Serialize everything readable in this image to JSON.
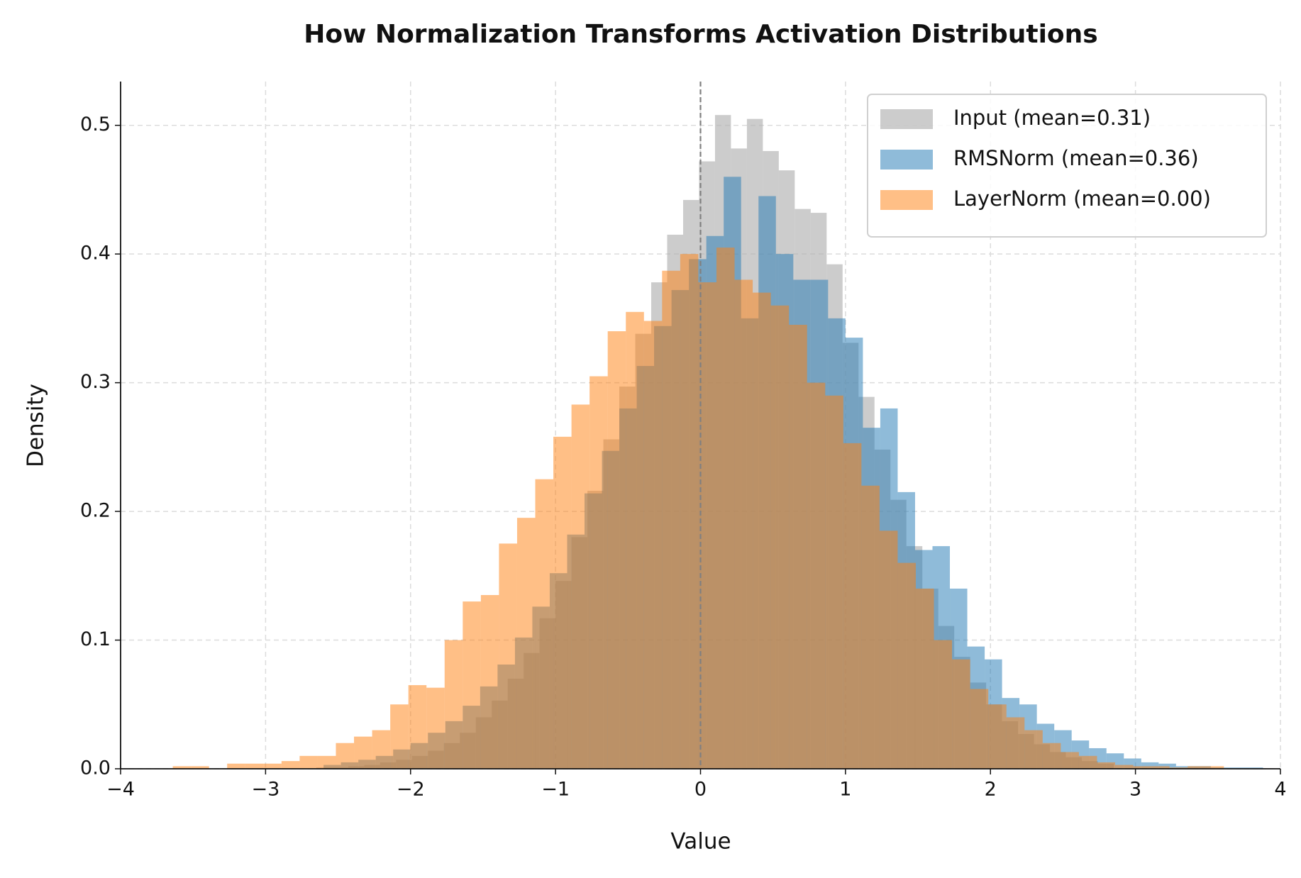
{
  "chart_data": {
    "type": "histogram",
    "title": "How Normalization Transforms Activation Distributions",
    "x_label": "Value",
    "y_label": "Density",
    "xlim": [
      -4,
      4
    ],
    "ylim": [
      0,
      0.534
    ],
    "xticks": [
      {
        "value": -4,
        "label": "−4"
      },
      {
        "value": -3,
        "label": "−3"
      },
      {
        "value": -2,
        "label": "−2"
      },
      {
        "value": -1,
        "label": "−1"
      },
      0,
      1,
      2,
      3,
      4
    ],
    "yticks": [
      {
        "value": 0,
        "label": "0.0"
      },
      0.1,
      0.2,
      0.3,
      0.4,
      0.5
    ],
    "grid": true,
    "legend_location": "upper-right",
    "reference_line_x": 0,
    "series": [
      {
        "name": "Input (mean=0.31)",
        "color": "#b0b0b0",
        "opacity": 0.65,
        "bins": [
          -2.65,
          -2.54,
          -2.43,
          -2.32,
          -2.21,
          -2.1,
          -1.99,
          -1.88,
          -1.77,
          -1.66,
          -1.55,
          -1.44,
          -1.33,
          -1.22,
          -1.11,
          -1.0,
          -0.89,
          -0.78,
          -0.67,
          -0.56,
          -0.45,
          -0.34,
          -0.23,
          -0.12,
          -0.01,
          0.1,
          0.21,
          0.32,
          0.43,
          0.54,
          0.65,
          0.76,
          0.87,
          0.98,
          1.09,
          1.2,
          1.31,
          1.42,
          1.53,
          1.64,
          1.75,
          1.86,
          1.97,
          2.08,
          2.19,
          2.3,
          2.41,
          2.52,
          2.63,
          2.74,
          2.85
        ],
        "values": [
          0.001,
          0.001,
          0.002,
          0.003,
          0.005,
          0.007,
          0.01,
          0.014,
          0.02,
          0.028,
          0.04,
          0.053,
          0.07,
          0.09,
          0.117,
          0.146,
          0.18,
          0.216,
          0.256,
          0.297,
          0.338,
          0.378,
          0.415,
          0.442,
          0.472,
          0.508,
          0.482,
          0.505,
          0.48,
          0.465,
          0.435,
          0.432,
          0.392,
          0.331,
          0.289,
          0.248,
          0.209,
          0.173,
          0.14,
          0.111,
          0.087,
          0.067,
          0.05,
          0.037,
          0.027,
          0.019,
          0.013,
          0.009,
          0.006,
          0.004
        ]
      },
      {
        "name": "RMSNorm (mean=0.36)",
        "color": "#1f77b4",
        "opacity": 0.5,
        "bins": [
          -2.6,
          -2.48,
          -2.36,
          -2.24,
          -2.12,
          -2.0,
          -1.88,
          -1.76,
          -1.64,
          -1.52,
          -1.4,
          -1.28,
          -1.16,
          -1.04,
          -0.92,
          -0.8,
          -0.68,
          -0.56,
          -0.44,
          -0.32,
          -0.2,
          -0.08,
          0.04,
          0.16,
          0.28,
          0.4,
          0.52,
          0.64,
          0.76,
          0.88,
          1.0,
          1.12,
          1.24,
          1.36,
          1.48,
          1.6,
          1.72,
          1.84,
          1.96,
          2.08,
          2.2,
          2.32,
          2.44,
          2.56,
          2.68,
          2.8,
          2.92,
          3.04,
          3.16,
          3.28,
          3.4,
          3.52,
          3.64,
          3.76,
          3.88
        ],
        "values": [
          0.003,
          0.005,
          0.007,
          0.01,
          0.015,
          0.02,
          0.028,
          0.037,
          0.049,
          0.064,
          0.081,
          0.102,
          0.126,
          0.152,
          0.182,
          0.214,
          0.247,
          0.28,
          0.313,
          0.344,
          0.372,
          0.396,
          0.414,
          0.46,
          0.35,
          0.445,
          0.4,
          0.38,
          0.38,
          0.35,
          0.335,
          0.265,
          0.28,
          0.215,
          0.17,
          0.173,
          0.14,
          0.095,
          0.085,
          0.055,
          0.05,
          0.035,
          0.03,
          0.022,
          0.016,
          0.012,
          0.008,
          0.005,
          0.004,
          0.002,
          0.002,
          0.001,
          0.001,
          0.001
        ]
      },
      {
        "name": "LayerNorm (mean=0.00)",
        "color": "#ff7f0e",
        "opacity": 0.5,
        "bins": [
          -3.64,
          -3.515,
          -3.39,
          -3.265,
          -3.14,
          -3.015,
          -2.89,
          -2.765,
          -2.64,
          -2.515,
          -2.39,
          -2.265,
          -2.14,
          -2.015,
          -1.89,
          -1.765,
          -1.64,
          -1.515,
          -1.39,
          -1.265,
          -1.14,
          -1.015,
          -0.89,
          -0.765,
          -0.64,
          -0.515,
          -0.39,
          -0.265,
          -0.14,
          -0.015,
          0.11,
          0.235,
          0.36,
          0.485,
          0.61,
          0.735,
          0.86,
          0.985,
          1.11,
          1.235,
          1.36,
          1.485,
          1.61,
          1.735,
          1.86,
          1.985,
          2.11,
          2.235,
          2.36,
          2.485,
          2.61,
          2.735,
          2.86,
          2.985,
          3.11,
          3.235,
          3.36,
          3.485,
          3.61
        ],
        "values": [
          0.002,
          0.002,
          0.0,
          0.004,
          0.004,
          0.004,
          0.006,
          0.01,
          0.01,
          0.02,
          0.025,
          0.03,
          0.05,
          0.065,
          0.063,
          0.1,
          0.13,
          0.135,
          0.175,
          0.195,
          0.225,
          0.258,
          0.283,
          0.305,
          0.34,
          0.355,
          0.348,
          0.387,
          0.4,
          0.378,
          0.405,
          0.38,
          0.37,
          0.36,
          0.345,
          0.3,
          0.29,
          0.253,
          0.22,
          0.185,
          0.16,
          0.14,
          0.1,
          0.085,
          0.062,
          0.05,
          0.04,
          0.03,
          0.02,
          0.013,
          0.01,
          0.005,
          0.003,
          0.002,
          0.002,
          0.001,
          0.002,
          0.002
        ]
      }
    ]
  }
}
